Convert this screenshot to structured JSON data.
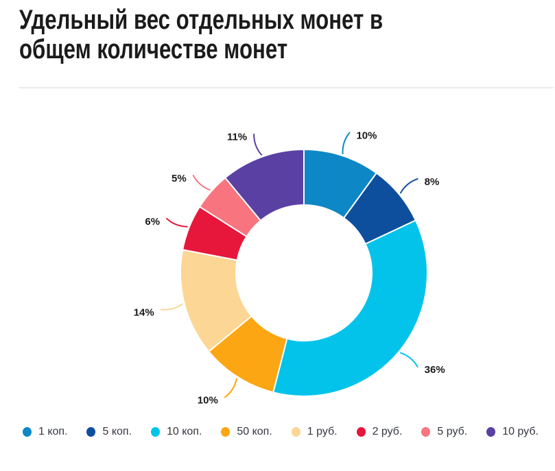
{
  "title": "Удельный вес отдельных монет в общем количестве монет",
  "chart_data": {
    "type": "pie",
    "subtype": "donut",
    "unit": "%",
    "labels_format": "percent",
    "legend_position": "bottom",
    "start_angle_deg": 0,
    "direction": "clockwise",
    "categories": [
      "1 коп.",
      "5 коп.",
      "10 коп.",
      "50 коп.",
      "1 руб.",
      "2 руб.",
      "5 руб.",
      "10 руб."
    ],
    "values": [
      10,
      8,
      36,
      10,
      14,
      6,
      5,
      11
    ],
    "series": [
      {
        "label": "1 коп.",
        "value": 10,
        "color": "#0d87c6"
      },
      {
        "label": "5 коп.",
        "value": 8,
        "color": "#0e4f9d"
      },
      {
        "label": "10 коп.",
        "value": 36,
        "color": "#04c3ea"
      },
      {
        "label": "50 коп.",
        "value": 10,
        "color": "#fba612"
      },
      {
        "label": "1 руб.",
        "value": 14,
        "color": "#fcd694"
      },
      {
        "label": "2 руб.",
        "value": 6,
        "color": "#e6173a"
      },
      {
        "label": "5 руб.",
        "value": 5,
        "color": "#f8757f"
      },
      {
        "label": "10 руб.",
        "value": 11,
        "color": "#5a40a2"
      }
    ]
  }
}
